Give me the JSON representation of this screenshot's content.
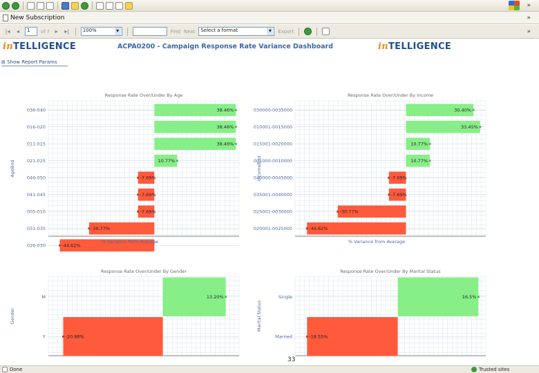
{
  "browser": {
    "tab_title": "New Subscription"
  },
  "report_toolbar": {
    "page_value": "1",
    "of_label": "of ?",
    "zoom": "100%",
    "find_label": "Find",
    "next_label": "Next",
    "format_select": "Select a format",
    "export_label": "Export"
  },
  "header": {
    "logo_prefix": "in",
    "logo_suffix": "TELLIGENCE",
    "title": "ACPA0200 - Campaign Response Rate Variance Dashboard",
    "show_params": "Show Report Params"
  },
  "colors": {
    "positive": "#88ee88",
    "negative": "#ff5a3c",
    "grid": "#d9e6ef",
    "axis": "#555555"
  },
  "chart_data": [
    {
      "type": "bar",
      "orientation": "horizontal",
      "title": "Response Rate Over/Under By Age",
      "xlabel": "% Variance from Average",
      "ylabel": "AgeBnd",
      "categories": [
        "036-040",
        "016-020",
        "011-015",
        "021-025",
        "046-050",
        "041-045",
        "005-010",
        "031-035",
        "026-030"
      ],
      "values": [
        38.46,
        38.46,
        38.46,
        10.77,
        -7.69,
        -7.69,
        -7.69,
        -30.77,
        -44.62
      ],
      "labels": [
        "38.46%",
        "38.46%",
        "38.46%",
        "10.77%",
        "-7.69%",
        "-7.69%",
        "-7.69%",
        "-30.77%",
        "-44.62%"
      ],
      "xlim": [
        -50,
        40
      ]
    },
    {
      "type": "bar",
      "orientation": "horizontal",
      "title": "Response Rate Over/Under By Income",
      "xlabel": "% Variance from Average",
      "ylabel": "IncomeBnd",
      "categories": [
        "030000-0035000",
        "010001-0015000",
        "015001-0020000",
        "001000-0010000",
        "040000-0045000",
        "035001-0040000",
        "025001-0030000",
        "020001-0025000"
      ],
      "values": [
        30.4,
        33.45,
        10.77,
        10.77,
        -7.69,
        -7.69,
        -30.77,
        -44.62
      ],
      "labels": [
        "30.40%",
        "33.45%",
        "10.77%",
        "10.77%",
        "-7.69%",
        "-7.69%",
        "-30.77%",
        "-44.62%"
      ],
      "xlim": [
        -50,
        36
      ]
    },
    {
      "type": "bar",
      "orientation": "horizontal",
      "title": "Response Rate Over/Under By Gender",
      "xlabel": "",
      "ylabel": "Gender",
      "categories": [
        "M",
        "F"
      ],
      "values": [
        13.2,
        -20.88
      ],
      "labels": [
        "13.20%",
        "-20.88%"
      ],
      "xlim": [
        -24,
        16
      ]
    },
    {
      "type": "bar",
      "orientation": "horizontal",
      "title": "Response Rate Over/Under By Marital Status",
      "xlabel": "",
      "ylabel": "Marital Status",
      "categories": [
        "Single",
        "Married"
      ],
      "values": [
        16.5,
        -18.55
      ],
      "labels": [
        "16.5%",
        "-18.55%"
      ],
      "xlim": [
        -21,
        18
      ]
    }
  ],
  "page_number": "33",
  "status": {
    "left": "Done",
    "zone": "Trusted sites"
  }
}
